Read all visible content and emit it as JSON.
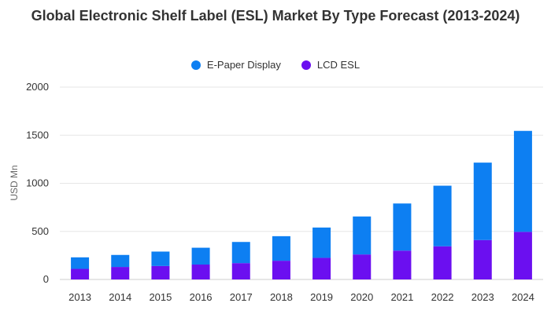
{
  "chart_data": {
    "type": "bar",
    "stacked": true,
    "title": "Global Electronic Shelf Label (ESL) Market By Type Forecast (2013-2024)",
    "ylabel": "USD Mn",
    "xlabel": "",
    "ylim": [
      0,
      2000
    ],
    "yticks": [
      0,
      500,
      1000,
      1500,
      2000
    ],
    "categories": [
      "2013",
      "2014",
      "2015",
      "2016",
      "2017",
      "2018",
      "2019",
      "2020",
      "2021",
      "2022",
      "2023",
      "2024"
    ],
    "series": [
      {
        "name": "LCD ESL",
        "color": "#6b0ff0",
        "values": [
          110,
          130,
          140,
          155,
          170,
          195,
          225,
          260,
          300,
          345,
          410,
          495
        ]
      },
      {
        "name": "E-Paper Display",
        "color": "#0d7ff2",
        "values": [
          120,
          125,
          150,
          175,
          220,
          255,
          315,
          395,
          490,
          630,
          805,
          1050
        ]
      }
    ],
    "legend_order": [
      "E-Paper Display",
      "LCD ESL"
    ],
    "legend_position": "top-center",
    "grid": true
  }
}
